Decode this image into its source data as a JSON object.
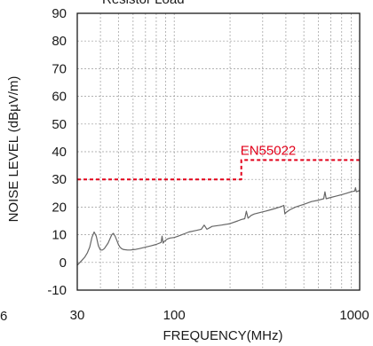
{
  "chart_data": {
    "type": "line",
    "title": "Resistor Load",
    "xlabel": "FREQUENCY(MHz)",
    "ylabel": "NOISE LEVEL (dBµV/m)",
    "x_scale": "log",
    "xlim": [
      30,
      1000
    ],
    "ylim": [
      -10,
      90
    ],
    "x_ticks": [
      30,
      100,
      1000
    ],
    "y_ticks": [
      -10,
      0,
      10,
      20,
      30,
      40,
      50,
      60,
      70,
      80,
      90
    ],
    "grid": true,
    "left_edge_fragment": "6",
    "series": [
      {
        "color": "#666666",
        "x": [
          30,
          31,
          32,
          33,
          34,
          35,
          36,
          37,
          38,
          39,
          40,
          41,
          42,
          44,
          46,
          47,
          48,
          49,
          50,
          51,
          52,
          53,
          54,
          56,
          58,
          60,
          62,
          65,
          70,
          75,
          80,
          85,
          86,
          87,
          88,
          90,
          92,
          95,
          100,
          105,
          110,
          115,
          120,
          130,
          140,
          145,
          150,
          155,
          160,
          180,
          200,
          220,
          230,
          240,
          245,
          250,
          252,
          255,
          260,
          270,
          290,
          310,
          330,
          350,
          370,
          380,
          390,
          395,
          400,
          420,
          450,
          500,
          550,
          600,
          640,
          650,
          660,
          700,
          750,
          800,
          850,
          900,
          940,
          950,
          960,
          1000
        ],
        "values": [
          -1,
          0,
          1,
          2,
          3.5,
          5.5,
          9,
          11,
          9.5,
          6,
          4.5,
          4.5,
          5,
          7,
          10,
          10.5,
          9.5,
          8,
          6.5,
          5.5,
          5,
          4.7,
          4.6,
          4.5,
          4.5,
          4.6,
          4.7,
          5,
          5.5,
          6,
          6.5,
          7.2,
          9.5,
          7,
          7.5,
          8,
          8.5,
          8.8,
          9,
          9.5,
          10,
          10.5,
          11,
          11.5,
          12,
          13.5,
          12,
          12.5,
          13,
          13.5,
          14,
          15,
          15.5,
          15.8,
          18.5,
          16,
          16.2,
          16.5,
          17,
          17.5,
          18,
          18.5,
          19,
          19.5,
          20,
          20.3,
          20.6,
          17.5,
          18,
          19,
          20,
          21,
          22,
          22.5,
          23,
          25.5,
          23,
          23.5,
          24,
          24.5,
          25,
          25.5,
          25.8,
          27,
          25.5,
          26
        ]
      },
      {
        "name": "EN55022",
        "color": "#e2001a",
        "x": [
          30,
          230,
          230,
          1000
        ],
        "values": [
          30,
          30,
          37,
          37
        ]
      }
    ]
  }
}
